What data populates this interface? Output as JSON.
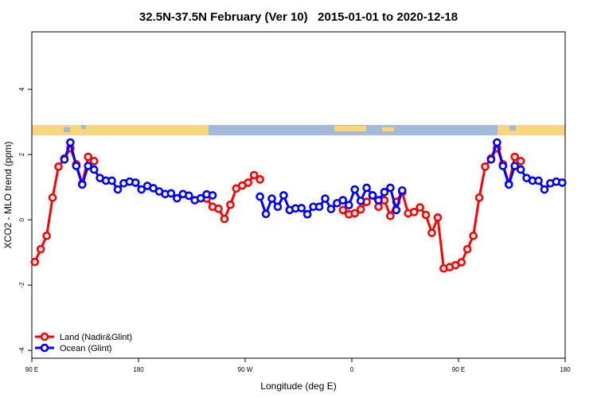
{
  "chart_data": {
    "type": "line",
    "title": "32.5N-37.5N February (Ver 10)   2015-01-01 to 2020-12-18",
    "xlabel": "Longitude (deg E)",
    "ylabel": "XCO2 - MLO trend (ppm)",
    "x": [
      92.5,
      97.5,
      102.5,
      107.5,
      112.5,
      117.5,
      122.5,
      127.5,
      132.5,
      137.5,
      142.5,
      147.5,
      152.5,
      157.5,
      162.5,
      167.5,
      172.5,
      177.5,
      182.5,
      187.5,
      192.5,
      197.5,
      202.5,
      207.5,
      212.5,
      217.5,
      222.5,
      227.5,
      232.5,
      237.5,
      242.5,
      247.5,
      252.5,
      257.5,
      262.5,
      267.5,
      272.5,
      277.5,
      282.5,
      287.5,
      292.5,
      297.5,
      302.5,
      307.5,
      312.5,
      317.5,
      322.5,
      327.5,
      332.5,
      337.5,
      342.5,
      347.5,
      352.5,
      357.5,
      362.5,
      367.5,
      372.5,
      377.5,
      382.5,
      387.5,
      392.5,
      397.5,
      402.5,
      407.5,
      412.5,
      417.5,
      422.5,
      427.5,
      432.5,
      437.5,
      442.5,
      447.5,
      452.5,
      457.5,
      462.5,
      467.5,
      472.5,
      477.5,
      482.5,
      487.5,
      492.5,
      497.5,
      502.5,
      507.5,
      512.5,
      517.5,
      522.5,
      527.5,
      532.5,
      537.5
    ],
    "series": [
      {
        "name": "Land (Nadir&Glint)",
        "color": "#ff0000",
        "values": [
          -1.29,
          -0.9,
          -0.49,
          0.68,
          1.63,
          1.88,
          2.2,
          1.7,
          1.1,
          1.93,
          1.8,
          null,
          null,
          null,
          null,
          null,
          null,
          null,
          null,
          null,
          null,
          null,
          null,
          null,
          null,
          null,
          null,
          null,
          null,
          0.65,
          0.4,
          0.34,
          0.03,
          0.46,
          0.96,
          1.05,
          1.14,
          1.37,
          1.24,
          null,
          null,
          null,
          null,
          null,
          null,
          null,
          null,
          null,
          null,
          null,
          null,
          null,
          0.3,
          0.17,
          0.2,
          0.32,
          0.55,
          0.75,
          0.4,
          0.6,
          0.12,
          0.55,
          0.85,
          0.2,
          0.24,
          0.38,
          0.15,
          -0.4,
          0.07,
          -1.49,
          -1.45,
          -1.39,
          -1.3,
          -0.9,
          -0.49,
          0.68,
          1.63,
          1.88,
          2.2,
          1.7,
          1.1,
          1.93,
          1.8,
          null,
          null,
          null,
          null,
          null,
          null,
          null
        ]
      },
      {
        "name": "Ocean (Glint)",
        "color": "#0000ff",
        "values": [
          null,
          null,
          null,
          null,
          null,
          1.85,
          2.37,
          1.65,
          1.08,
          1.65,
          1.54,
          1.28,
          1.2,
          1.2,
          0.93,
          1.12,
          1.17,
          1.14,
          0.93,
          1.04,
          0.97,
          0.87,
          0.79,
          0.81,
          0.66,
          0.79,
          0.74,
          0.6,
          0.66,
          0.78,
          0.75,
          null,
          null,
          null,
          null,
          null,
          null,
          null,
          0.71,
          0.18,
          0.65,
          0.4,
          0.75,
          0.3,
          0.35,
          0.36,
          0.17,
          0.4,
          0.4,
          0.65,
          0.33,
          0.51,
          0.6,
          0.45,
          0.93,
          0.58,
          0.98,
          0.75,
          0.6,
          0.85,
          0.98,
          0.3,
          0.9,
          null,
          null,
          null,
          null,
          null,
          null,
          null,
          null,
          null,
          null,
          null,
          null,
          null,
          null,
          1.85,
          2.37,
          1.65,
          1.08,
          1.65,
          1.54,
          1.28,
          1.2,
          1.2,
          0.93,
          1.12,
          1.17,
          1.14
        ]
      }
    ],
    "xlim": [
      90,
      540
    ],
    "xticks": [
      {
        "value": 90,
        "label": "90 E"
      },
      {
        "value": 180,
        "label": "180"
      },
      {
        "value": 270,
        "label": "90 W"
      },
      {
        "value": 360,
        "label": "0"
      },
      {
        "value": 450,
        "label": "90 E"
      },
      {
        "value": 540,
        "label": "180"
      }
    ],
    "ylim": [
      -4.24,
      5.76
    ],
    "yticks": [
      -4,
      -2,
      0,
      2,
      4
    ],
    "legend": "bottom-left"
  }
}
